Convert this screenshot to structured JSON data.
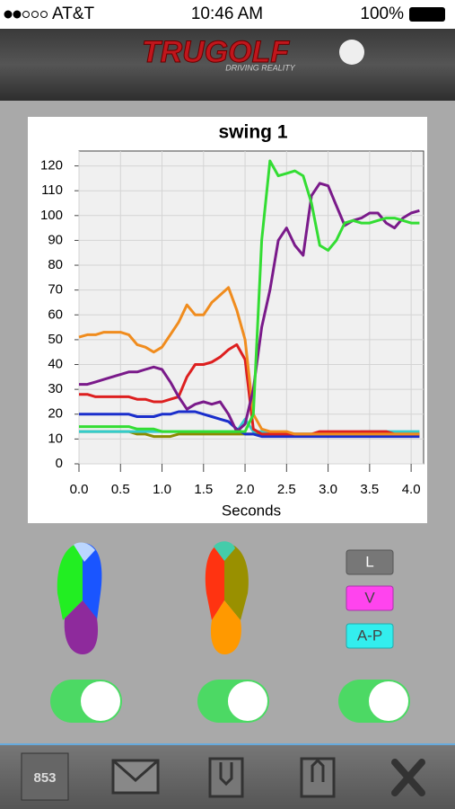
{
  "status_bar": {
    "carrier": "AT&T",
    "time": "10:46 AM",
    "battery": "100%"
  },
  "header": {
    "logo": "TRUGOLF",
    "tagline": "DRIVING REALITY"
  },
  "chart_data": {
    "type": "line",
    "title": "swing 1",
    "x_label": "Seconds",
    "x": [
      0.0,
      0.1,
      0.2,
      0.3,
      0.4,
      0.5,
      0.6,
      0.7,
      0.8,
      0.9,
      1.0,
      1.1,
      1.2,
      1.3,
      1.4,
      1.5,
      1.6,
      1.7,
      1.8,
      1.9,
      2.0,
      2.1,
      2.2,
      2.3,
      2.4,
      2.5,
      2.6,
      2.7,
      2.8,
      2.9,
      3.0,
      3.1,
      3.2,
      3.3,
      3.4,
      3.5,
      3.6,
      3.7,
      3.8,
      3.9,
      4.0,
      4.1
    ],
    "xlim": [
      0,
      4.15
    ],
    "xticks": [
      {
        "value": 0,
        "label": "0.0"
      },
      0.5,
      {
        "value": 1,
        "label": "1.0"
      },
      1.5,
      {
        "value": 2,
        "label": "2.0"
      },
      2.5,
      {
        "value": 3,
        "label": "3.0"
      },
      3.5,
      {
        "value": 4,
        "label": "4.0"
      }
    ],
    "ylim": [
      0,
      126
    ],
    "yticks": [
      0,
      10,
      20,
      30,
      40,
      50,
      60,
      70,
      80,
      90,
      100,
      110,
      120
    ],
    "grid": true,
    "series": [
      {
        "color": "#8b8b00",
        "values": [
          13,
          13,
          13,
          13,
          13,
          13,
          13,
          12,
          12,
          11,
          11,
          11,
          12,
          12,
          12,
          12,
          12,
          12,
          12,
          12,
          12,
          12,
          12,
          12,
          12,
          12,
          12,
          12,
          12,
          12,
          12,
          12,
          12,
          12,
          12,
          12,
          12,
          12,
          12,
          12,
          12,
          12
        ]
      },
      {
        "color": "#33cccc",
        "values": [
          13,
          13,
          13,
          13,
          13,
          13,
          13,
          13,
          13,
          13,
          13,
          13,
          13,
          13,
          13,
          13,
          13,
          13,
          13,
          13,
          18,
          13,
          13,
          12,
          12,
          12,
          12,
          12,
          12,
          12,
          12,
          12,
          12,
          12,
          13,
          13,
          13,
          13,
          13,
          13,
          13,
          13
        ]
      },
      {
        "color": "#1a2ecc",
        "values": [
          20,
          20,
          20,
          20,
          20,
          20,
          20,
          19,
          19,
          19,
          20,
          20,
          21,
          21,
          21,
          20,
          19,
          18,
          17,
          14,
          12,
          12,
          11,
          11,
          11,
          11,
          11,
          11,
          11,
          11,
          11,
          11,
          11,
          11,
          11,
          11,
          11,
          11,
          11,
          11,
          11,
          11
        ]
      },
      {
        "color": "#dd1f1f",
        "values": [
          28,
          28,
          27,
          27,
          27,
          27,
          27,
          26,
          26,
          25,
          25,
          26,
          27,
          35,
          40,
          40,
          41,
          43,
          46,
          48,
          42,
          14,
          12,
          12,
          12,
          12,
          12,
          12,
          12,
          13,
          13,
          13,
          13,
          13,
          13,
          13,
          13,
          13,
          12,
          12,
          12,
          12
        ]
      },
      {
        "color": "#f08c1e",
        "values": [
          51,
          52,
          52,
          53,
          53,
          53,
          52,
          48,
          47,
          45,
          47,
          52,
          57,
          64,
          60,
          60,
          65,
          68,
          71,
          62,
          50,
          20,
          14,
          13,
          13,
          13,
          12,
          12,
          12,
          12,
          12,
          12,
          12,
          12,
          12,
          12,
          12,
          12,
          12,
          12,
          12,
          12
        ]
      },
      {
        "color": "#7a1a8a",
        "values": [
          32,
          32,
          33,
          34,
          35,
          36,
          37,
          37,
          38,
          39,
          38,
          33,
          27,
          22,
          24,
          25,
          24,
          25,
          20,
          13,
          16,
          30,
          55,
          70,
          90,
          95,
          88,
          84,
          108,
          113,
          112,
          104,
          96,
          98,
          99,
          101,
          101,
          97,
          95,
          99,
          101,
          102
        ]
      },
      {
        "color": "#33dd33",
        "values": [
          15,
          15,
          15,
          15,
          15,
          15,
          15,
          14,
          14,
          14,
          13,
          13,
          13,
          13,
          13,
          13,
          13,
          13,
          13,
          13,
          13,
          20,
          90,
          122,
          116,
          117,
          118,
          116,
          105,
          88,
          86,
          90,
          97,
          98,
          97,
          97,
          98,
          99,
          99,
          98,
          97,
          97
        ]
      }
    ]
  },
  "legend_buttons": [
    "L",
    "V",
    "A-P"
  ],
  "toolbar": {
    "counter": "853"
  }
}
